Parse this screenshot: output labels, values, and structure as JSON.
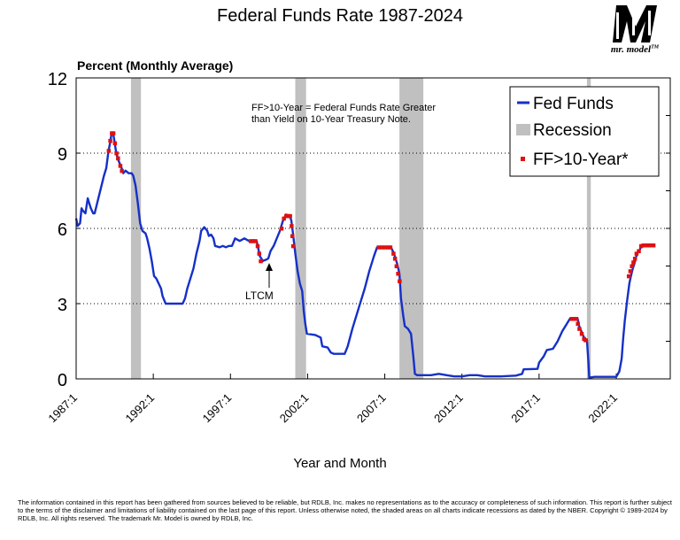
{
  "chart_data": {
    "type": "line",
    "title": "Federal Funds Rate 1987-2024",
    "ylabel": "Percent (Monthly Average)",
    "xlabel": "Year and Month",
    "ylim": [
      0,
      12
    ],
    "xlim": [
      1987.0,
      2025.5
    ],
    "y_ticks": [
      "0",
      "3",
      "6",
      "9",
      "12"
    ],
    "x_ticks": [
      {
        "label": "1987:1",
        "value": 1987.0
      },
      {
        "label": "1992:1",
        "value": 1992.0
      },
      {
        "label": "1997:1",
        "value": 1997.0
      },
      {
        "label": "2002:1",
        "value": 2002.0
      },
      {
        "label": "2007:1",
        "value": 2007.0
      },
      {
        "label": "2012:1",
        "value": 2012.0
      },
      {
        "label": "2017:1",
        "value": 2017.0
      },
      {
        "label": "2022:1",
        "value": 2022.0
      }
    ],
    "grid": "horizontal dotted",
    "legend": {
      "position": "top-right",
      "entries": [
        {
          "label": "Fed Funds",
          "kind": "line"
        },
        {
          "label": "Recession",
          "kind": "band"
        },
        {
          "label": "FF>10-Year*",
          "kind": "marker"
        }
      ]
    },
    "recessions": [
      [
        1990.55,
        1991.2
      ],
      [
        2001.2,
        2001.9
      ],
      [
        2007.95,
        2009.5
      ],
      [
        2020.1,
        2020.35
      ]
    ],
    "annotations": [
      {
        "text": "FF>10-Year = Federal Funds Rate Greater",
        "line": 1
      },
      {
        "text": "than Yield on 10-Year Treasury Note.",
        "line": 2
      },
      {
        "text": "LTCM",
        "x": 1998.75,
        "y": 4.8
      }
    ],
    "series": [
      {
        "name": "Fed Funds",
        "color": "#1530c8",
        "points": [
          [
            1987.0,
            6.4
          ],
          [
            1987.1,
            6.1
          ],
          [
            1987.25,
            6.2
          ],
          [
            1987.35,
            6.8
          ],
          [
            1987.45,
            6.7
          ],
          [
            1987.6,
            6.6
          ],
          [
            1987.75,
            7.2
          ],
          [
            1987.85,
            7.0
          ],
          [
            1987.95,
            6.8
          ],
          [
            1988.1,
            6.6
          ],
          [
            1988.2,
            6.6
          ],
          [
            1988.4,
            7.1
          ],
          [
            1988.6,
            7.6
          ],
          [
            1988.8,
            8.1
          ],
          [
            1988.95,
            8.4
          ],
          [
            1989.1,
            9.1
          ],
          [
            1989.2,
            9.4
          ],
          [
            1989.3,
            9.8
          ],
          [
            1989.4,
            9.8
          ],
          [
            1989.5,
            9.4
          ],
          [
            1989.6,
            9.0
          ],
          [
            1989.75,
            8.7
          ],
          [
            1989.95,
            8.4
          ],
          [
            1990.05,
            8.2
          ],
          [
            1990.2,
            8.3
          ],
          [
            1990.4,
            8.2
          ],
          [
            1990.6,
            8.2
          ],
          [
            1990.7,
            8.1
          ],
          [
            1990.85,
            7.7
          ],
          [
            1991.0,
            7.0
          ],
          [
            1991.15,
            6.2
          ],
          [
            1991.3,
            5.9
          ],
          [
            1991.5,
            5.8
          ],
          [
            1991.6,
            5.6
          ],
          [
            1991.75,
            5.2
          ],
          [
            1991.9,
            4.7
          ],
          [
            1992.05,
            4.1
          ],
          [
            1992.2,
            4.0
          ],
          [
            1992.35,
            3.8
          ],
          [
            1992.5,
            3.6
          ],
          [
            1992.6,
            3.3
          ],
          [
            1992.8,
            3.0
          ],
          [
            1993.0,
            3.0
          ],
          [
            1993.5,
            3.0
          ],
          [
            1993.9,
            3.0
          ],
          [
            1994.05,
            3.2
          ],
          [
            1994.2,
            3.6
          ],
          [
            1994.4,
            4.0
          ],
          [
            1994.6,
            4.4
          ],
          [
            1994.8,
            5.0
          ],
          [
            1995.0,
            5.5
          ],
          [
            1995.1,
            5.9
          ],
          [
            1995.3,
            6.05
          ],
          [
            1995.5,
            5.9
          ],
          [
            1995.6,
            5.7
          ],
          [
            1995.75,
            5.75
          ],
          [
            1995.9,
            5.6
          ],
          [
            1996.0,
            5.3
          ],
          [
            1996.3,
            5.25
          ],
          [
            1996.5,
            5.3
          ],
          [
            1996.7,
            5.25
          ],
          [
            1996.9,
            5.3
          ],
          [
            1997.1,
            5.3
          ],
          [
            1997.3,
            5.6
          ],
          [
            1997.6,
            5.5
          ],
          [
            1997.9,
            5.6
          ],
          [
            1998.2,
            5.5
          ],
          [
            1998.5,
            5.5
          ],
          [
            1998.7,
            5.5
          ],
          [
            1998.8,
            5.2
          ],
          [
            1998.9,
            4.9
          ],
          [
            1999.1,
            4.7
          ],
          [
            1999.3,
            4.75
          ],
          [
            1999.45,
            4.8
          ],
          [
            1999.6,
            5.1
          ],
          [
            1999.8,
            5.3
          ],
          [
            2000.0,
            5.6
          ],
          [
            2000.2,
            5.9
          ],
          [
            2000.4,
            6.3
          ],
          [
            2000.6,
            6.55
          ],
          [
            2000.85,
            6.5
          ],
          [
            2000.95,
            6.3
          ],
          [
            2001.05,
            5.8
          ],
          [
            2001.2,
            5.0
          ],
          [
            2001.35,
            4.3
          ],
          [
            2001.5,
            3.8
          ],
          [
            2001.65,
            3.5
          ],
          [
            2001.75,
            2.7
          ],
          [
            2001.85,
            2.2
          ],
          [
            2001.95,
            1.8
          ],
          [
            2002.5,
            1.75
          ],
          [
            2002.85,
            1.65
          ],
          [
            2002.95,
            1.3
          ],
          [
            2003.3,
            1.25
          ],
          [
            2003.5,
            1.05
          ],
          [
            2003.7,
            1.0
          ],
          [
            2004.4,
            1.0
          ],
          [
            2004.6,
            1.3
          ],
          [
            2004.9,
            2.0
          ],
          [
            2005.3,
            2.8
          ],
          [
            2005.7,
            3.6
          ],
          [
            2006.0,
            4.3
          ],
          [
            2006.3,
            4.9
          ],
          [
            2006.5,
            5.25
          ],
          [
            2006.9,
            5.25
          ],
          [
            2007.4,
            5.25
          ],
          [
            2007.6,
            5.0
          ],
          [
            2007.8,
            4.6
          ],
          [
            2007.95,
            4.2
          ],
          [
            2008.05,
            3.2
          ],
          [
            2008.2,
            2.5
          ],
          [
            2008.3,
            2.1
          ],
          [
            2008.5,
            2.0
          ],
          [
            2008.7,
            1.8
          ],
          [
            2008.85,
            0.9
          ],
          [
            2008.95,
            0.2
          ],
          [
            2009.1,
            0.15
          ],
          [
            2010.0,
            0.15
          ],
          [
            2010.5,
            0.2
          ],
          [
            2011.0,
            0.15
          ],
          [
            2011.5,
            0.1
          ],
          [
            2012.0,
            0.1
          ],
          [
            2012.5,
            0.15
          ],
          [
            2013.0,
            0.15
          ],
          [
            2013.5,
            0.1
          ],
          [
            2014.5,
            0.1
          ],
          [
            2015.5,
            0.13
          ],
          [
            2015.9,
            0.2
          ],
          [
            2016.0,
            0.38
          ],
          [
            2016.9,
            0.4
          ],
          [
            2017.0,
            0.65
          ],
          [
            2017.3,
            0.9
          ],
          [
            2017.5,
            1.15
          ],
          [
            2017.9,
            1.2
          ],
          [
            2018.2,
            1.5
          ],
          [
            2018.5,
            1.9
          ],
          [
            2018.8,
            2.2
          ],
          [
            2019.0,
            2.4
          ],
          [
            2019.5,
            2.4
          ],
          [
            2019.6,
            2.1
          ],
          [
            2019.8,
            1.8
          ],
          [
            2019.95,
            1.6
          ],
          [
            2020.1,
            1.55
          ],
          [
            2020.2,
            0.65
          ],
          [
            2020.25,
            0.05
          ],
          [
            2020.6,
            0.08
          ],
          [
            2021.0,
            0.08
          ],
          [
            2021.5,
            0.08
          ],
          [
            2022.0,
            0.08
          ],
          [
            2022.2,
            0.3
          ],
          [
            2022.35,
            0.8
          ],
          [
            2022.45,
            1.6
          ],
          [
            2022.55,
            2.3
          ],
          [
            2022.7,
            3.1
          ],
          [
            2022.85,
            3.8
          ],
          [
            2022.95,
            4.1
          ],
          [
            2023.05,
            4.35
          ],
          [
            2023.2,
            4.65
          ],
          [
            2023.35,
            5.0
          ],
          [
            2023.5,
            5.1
          ],
          [
            2023.65,
            5.35
          ],
          [
            2024.0,
            5.33
          ],
          [
            2024.5,
            5.33
          ]
        ]
      },
      {
        "name": "FF>10-Year*",
        "color": "#e01010",
        "points": [
          [
            1989.1,
            9.1
          ],
          [
            1989.2,
            9.5
          ],
          [
            1989.3,
            9.8
          ],
          [
            1989.4,
            9.8
          ],
          [
            1989.5,
            9.4
          ],
          [
            1989.6,
            9.0
          ],
          [
            1989.7,
            8.8
          ],
          [
            1989.85,
            8.5
          ],
          [
            1989.95,
            8.3
          ],
          [
            1998.3,
            5.5
          ],
          [
            1998.45,
            5.5
          ],
          [
            1998.6,
            5.5
          ],
          [
            1998.75,
            5.3
          ],
          [
            1998.85,
            5.0
          ],
          [
            1998.95,
            4.7
          ],
          [
            2000.3,
            6.0
          ],
          [
            2000.45,
            6.4
          ],
          [
            2000.6,
            6.5
          ],
          [
            2000.75,
            6.5
          ],
          [
            2000.85,
            6.5
          ],
          [
            2000.95,
            6.1
          ],
          [
            2001.0,
            5.7
          ],
          [
            2001.05,
            5.3
          ],
          [
            2006.6,
            5.25
          ],
          [
            2006.8,
            5.25
          ],
          [
            2007.0,
            5.25
          ],
          [
            2007.2,
            5.25
          ],
          [
            2007.35,
            5.25
          ],
          [
            2007.55,
            5.0
          ],
          [
            2007.65,
            4.8
          ],
          [
            2007.75,
            4.5
          ],
          [
            2007.85,
            4.2
          ],
          [
            2007.95,
            3.9
          ],
          [
            2019.1,
            2.4
          ],
          [
            2019.25,
            2.4
          ],
          [
            2019.4,
            2.4
          ],
          [
            2019.5,
            2.2
          ],
          [
            2019.6,
            2.0
          ],
          [
            2019.75,
            1.8
          ],
          [
            2019.9,
            1.6
          ],
          [
            2020.0,
            1.55
          ],
          [
            2022.8,
            4.1
          ],
          [
            2022.9,
            4.3
          ],
          [
            2023.0,
            4.5
          ],
          [
            2023.1,
            4.65
          ],
          [
            2023.2,
            4.8
          ],
          [
            2023.3,
            5.0
          ],
          [
            2023.45,
            5.1
          ],
          [
            2023.6,
            5.3
          ],
          [
            2023.8,
            5.33
          ],
          [
            2024.0,
            5.33
          ],
          [
            2024.2,
            5.33
          ],
          [
            2024.4,
            5.33
          ]
        ]
      }
    ]
  },
  "colors": {
    "fed_funds": "#1530c8",
    "recession": "#c0c0c0",
    "ff_gt_10y": "#e01010"
  },
  "logo": {
    "text": "mr. model",
    "trademark": "TM"
  },
  "disclaimer": "The information contained in this report has been gathered from sources believed to be reliable, but RDLB, Inc. makes no representations as to the accuracy or completeness of such information. This report is further subject to the terms of the disclaimer and limitations of liability contained on the last page of this report. Unless otherwise noted, the shaded areas on all charts indicate recessions as dated by the NBER. Copyright © 1989-2024 by RDLB, Inc. All rights reserved. The trademark Mr. Model is owned by RDLB, Inc."
}
